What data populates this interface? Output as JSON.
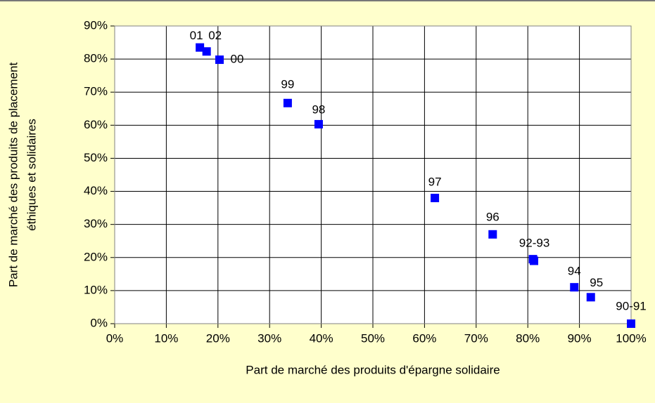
{
  "chart_data": {
    "type": "scatter",
    "x_label": "Part de marché des produits d'épargne solidaire",
    "y_label": [
      "Part de marché des produits de placement",
      "éthiques et solidaires"
    ],
    "x": [
      16.5,
      17.8,
      20.3,
      33.5,
      39.5,
      62,
      73.2,
      81,
      81.2,
      89,
      92.2,
      100
    ],
    "y": [
      83.5,
      82.3,
      79.8,
      66.7,
      60.3,
      38,
      27,
      19.5,
      19,
      11,
      8,
      0
    ],
    "labels": [
      "01",
      "02",
      "00",
      "99",
      "98",
      "97",
      "96",
      "92-93",
      null,
      "94",
      "95",
      "90-91"
    ],
    "color": "#0000ff",
    "xlim": [
      0,
      100
    ],
    "xticks": [
      {
        "value": 0,
        "label": "0%"
      },
      {
        "value": 10,
        "label": "10%"
      },
      {
        "value": 20,
        "label": "20%"
      },
      {
        "value": 30,
        "label": "30%"
      },
      {
        "value": 40,
        "label": "40%"
      },
      {
        "value": 50,
        "label": "50%"
      },
      {
        "value": 60,
        "label": "60%"
      },
      {
        "value": 70,
        "label": "70%"
      },
      {
        "value": 80,
        "label": "80%"
      },
      {
        "value": 90,
        "label": "90%"
      },
      {
        "value": 100,
        "label": "100%"
      }
    ],
    "ylim": [
      0,
      90
    ],
    "yticks": [
      {
        "value": 0,
        "label": "0%"
      },
      {
        "value": 10,
        "label": "10%"
      },
      {
        "value": 20,
        "label": "20%"
      },
      {
        "value": 30,
        "label": "30%"
      },
      {
        "value": 40,
        "label": "40%"
      },
      {
        "value": 50,
        "label": "50%"
      },
      {
        "value": 60,
        "label": "60%"
      },
      {
        "value": 70,
        "label": "70%"
      },
      {
        "value": 80,
        "label": "80%"
      },
      {
        "value": 90,
        "label": "90%"
      }
    ],
    "grid": true
  }
}
